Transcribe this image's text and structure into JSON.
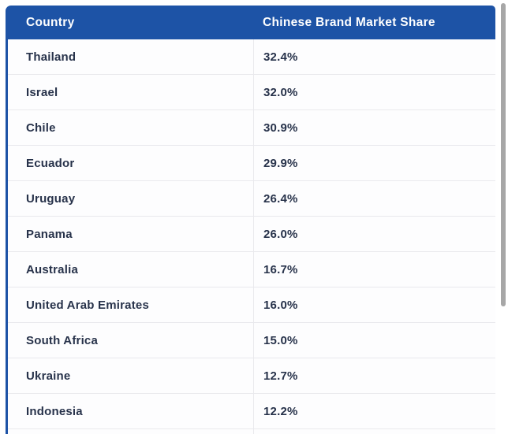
{
  "table": {
    "header": {
      "country": "Country",
      "share": "Chinese Brand Market Share"
    },
    "rows": [
      {
        "country": "Thailand",
        "share": "32.4%"
      },
      {
        "country": "Israel",
        "share": "32.0%"
      },
      {
        "country": "Chile",
        "share": "30.9%"
      },
      {
        "country": "Ecuador",
        "share": "29.9%"
      },
      {
        "country": "Uruguay",
        "share": "26.4%"
      },
      {
        "country": "Panama",
        "share": "26.0%"
      },
      {
        "country": "Australia",
        "share": "16.7%"
      },
      {
        "country": "United Arab Emirates",
        "share": "16.0%"
      },
      {
        "country": "South Africa",
        "share": "15.0%"
      },
      {
        "country": "Ukraine",
        "share": "12.7%"
      },
      {
        "country": "Indonesia",
        "share": "12.2%"
      }
    ]
  },
  "chart_data": {
    "type": "table",
    "title": "",
    "columns": [
      "Country",
      "Chinese Brand Market Share"
    ],
    "rows": [
      [
        "Thailand",
        "32.4%"
      ],
      [
        "Israel",
        "32.0%"
      ],
      [
        "Chile",
        "30.9%"
      ],
      [
        "Ecuador",
        "29.9%"
      ],
      [
        "Uruguay",
        "26.4%"
      ],
      [
        "Panama",
        "26.0%"
      ],
      [
        "Australia",
        "16.7%"
      ],
      [
        "United Arab Emirates",
        "16.0%"
      ],
      [
        "South Africa",
        "15.0%"
      ],
      [
        "Ukraine",
        "12.7%"
      ],
      [
        "Indonesia",
        "12.2%"
      ]
    ],
    "shares_numeric": [
      32.4,
      32.0,
      30.9,
      29.9,
      26.4,
      26.0,
      16.7,
      16.0,
      15.0,
      12.7,
      12.2
    ]
  },
  "colors": {
    "header_bg": "#1d53a6",
    "header_text": "#ffffff",
    "row_text": "#27324a",
    "separator": "#e9e9ed",
    "left_border": "#1d53a6",
    "scrollbar_thumb": "#a7a7a7"
  }
}
